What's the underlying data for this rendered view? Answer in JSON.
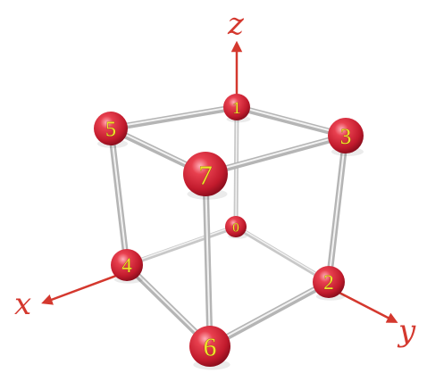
{
  "axes": {
    "x": {
      "label": "x",
      "color": "#d4382e"
    },
    "y": {
      "label": "y",
      "color": "#d4382e"
    },
    "z": {
      "label": "z",
      "color": "#d4382e"
    }
  },
  "nodes": [
    {
      "label": "0"
    },
    {
      "label": "1"
    },
    {
      "label": "2"
    },
    {
      "label": "3"
    },
    {
      "label": "4"
    },
    {
      "label": "5"
    },
    {
      "label": "6"
    },
    {
      "label": "7"
    }
  ],
  "colors": {
    "sphere": "#d8273a",
    "sphere_dark": "#8e0f1f",
    "sphere_highlight": "#ff9ba4",
    "rod": "#bdbdbd",
    "rod_dark": "#8a8a8a",
    "label": "#f0e22a",
    "arrow": "#d4382e"
  }
}
